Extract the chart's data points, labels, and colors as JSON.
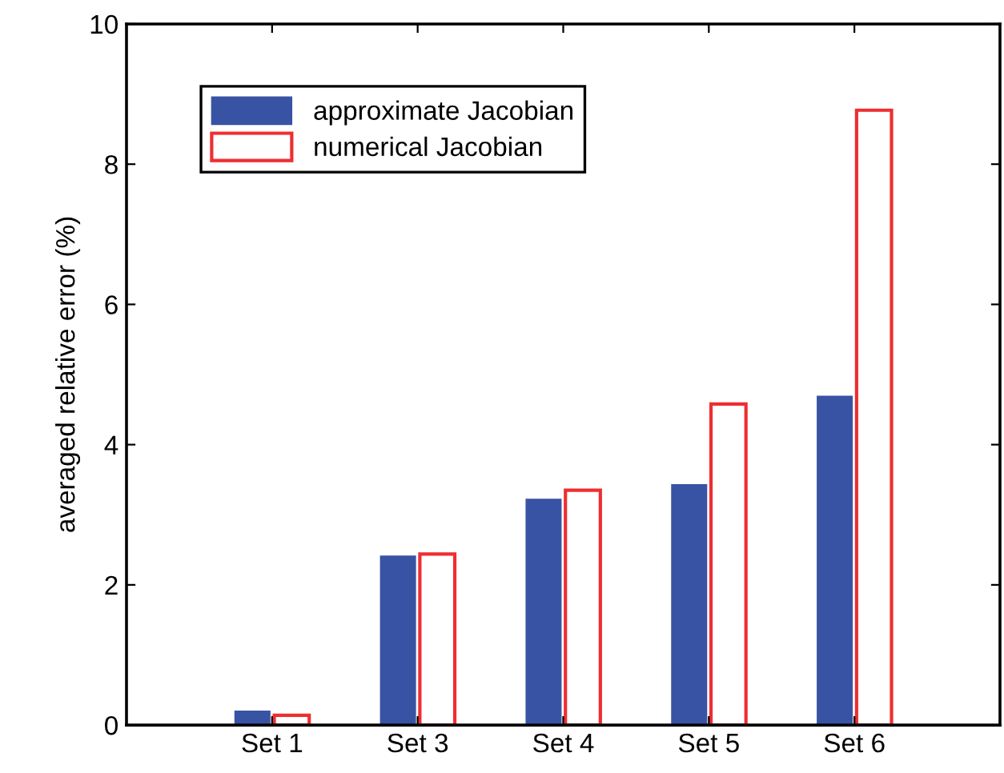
{
  "chart_data": {
    "type": "bar",
    "ylabel": "averaged relative error (%)",
    "categories": [
      null,
      "Set 1",
      "Set 3",
      "Set 4",
      "Set 5",
      "Set 6",
      null
    ],
    "series": [
      {
        "name": "approximate Jacobian",
        "color": "#3953a4",
        "values": [
          null,
          0.2,
          2.41,
          3.22,
          3.43,
          4.69,
          null
        ]
      },
      {
        "name": "numerical Jacobian",
        "color": "#ee2e31",
        "values": [
          null,
          0.14,
          2.44,
          3.35,
          4.58,
          8.77,
          null
        ]
      }
    ],
    "ylim": [
      0,
      10
    ],
    "yticks": [
      0,
      2,
      4,
      6,
      8,
      10
    ],
    "grid": false,
    "legend": "top left"
  }
}
